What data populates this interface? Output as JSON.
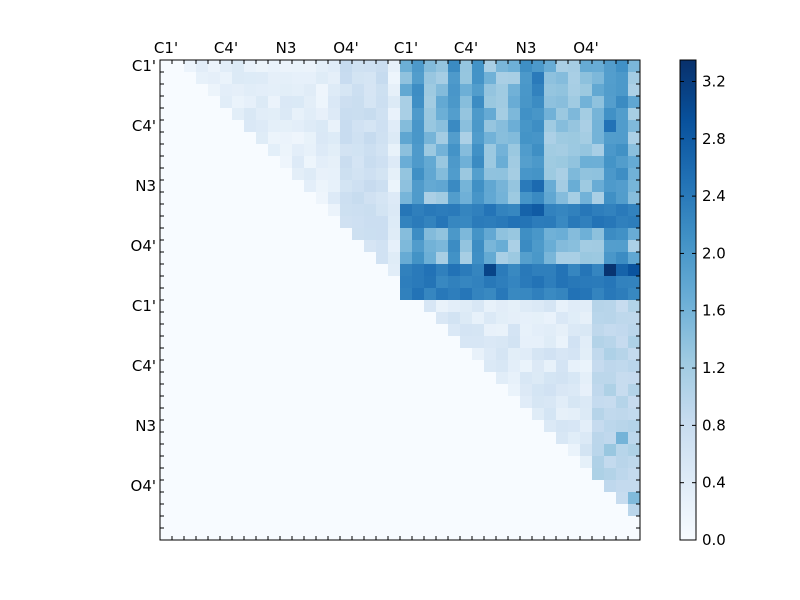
{
  "chart_data": {
    "type": "heatmap",
    "title": "",
    "xlabel": "",
    "ylabel": "",
    "n": 40,
    "colormap": "Blues",
    "x_tick_labels": [
      "C1'",
      "C4'",
      "N3",
      "O4'",
      "C1'",
      "C4'",
      "N3",
      "O4'"
    ],
    "y_tick_labels": [
      "C1'",
      "C4'",
      "N3",
      "O4'",
      "C1'",
      "C4'",
      "N3",
      "O4'"
    ],
    "tick_indices": [
      0,
      5,
      10,
      15,
      20,
      25,
      30,
      35
    ],
    "colorbar": {
      "min": 0.0,
      "max": 3.35,
      "ticks": [
        0.0,
        0.4,
        0.8,
        1.2,
        1.6,
        2.0,
        2.4,
        2.8,
        3.2
      ],
      "tick_labels": [
        "0.0",
        "0.4",
        "0.8",
        "1.2",
        "1.6",
        "2.0",
        "2.4",
        "2.8",
        "3.2"
      ]
    },
    "blocks": [
      {
        "name": "strand1-strand1",
        "rows": [
          0,
          20
        ],
        "cols": [
          0,
          20
        ],
        "upper_triangle_only": true,
        "base": 0.15,
        "range": 0.35,
        "band_cols": [
          15,
          16,
          17,
          18
        ],
        "band_level": 0.55
      },
      {
        "name": "strand1-strand2",
        "rows": [
          0,
          20
        ],
        "cols": [
          20,
          40
        ],
        "upper_triangle_only": false,
        "base": 1.1,
        "range": 0.7,
        "strong_cols": [
          21,
          24,
          26,
          30,
          31,
          37,
          38
        ],
        "strong_level": 1.9,
        "strong_rows": [
          12,
          13,
          17,
          18,
          19
        ],
        "strong_row_level": 2.2
      },
      {
        "name": "strand2-strand2",
        "rows": [
          20,
          40
        ],
        "cols": [
          20,
          40
        ],
        "upper_triangle_only": true,
        "base": 0.2,
        "range": 0.45,
        "band_cols": [
          36,
          37,
          38,
          39
        ],
        "band_level": 0.8
      }
    ],
    "peaks": [
      {
        "row": 17,
        "col": 37,
        "value": 3.3
      },
      {
        "row": 17,
        "col": 39,
        "value": 2.9
      },
      {
        "row": 17,
        "col": 38,
        "value": 2.7
      },
      {
        "row": 17,
        "col": 27,
        "value": 3.1
      },
      {
        "row": 17,
        "col": 24,
        "value": 2.5
      },
      {
        "row": 12,
        "col": 30,
        "value": 2.7
      },
      {
        "row": 12,
        "col": 31,
        "value": 2.8
      },
      {
        "row": 10,
        "col": 31,
        "value": 2.6
      },
      {
        "row": 10,
        "col": 30,
        "value": 2.4
      },
      {
        "row": 1,
        "col": 31,
        "value": 2.4
      },
      {
        "row": 2,
        "col": 31,
        "value": 2.3
      },
      {
        "row": 5,
        "col": 37,
        "value": 2.5
      },
      {
        "row": 12,
        "col": 37,
        "value": 2.3
      },
      {
        "row": 12,
        "col": 38,
        "value": 2.4
      },
      {
        "row": 12,
        "col": 39,
        "value": 2.3
      },
      {
        "row": 31,
        "col": 38,
        "value": 1.6
      },
      {
        "row": 32,
        "col": 37,
        "value": 1.3
      },
      {
        "row": 36,
        "col": 39,
        "value": 1.5
      }
    ]
  }
}
